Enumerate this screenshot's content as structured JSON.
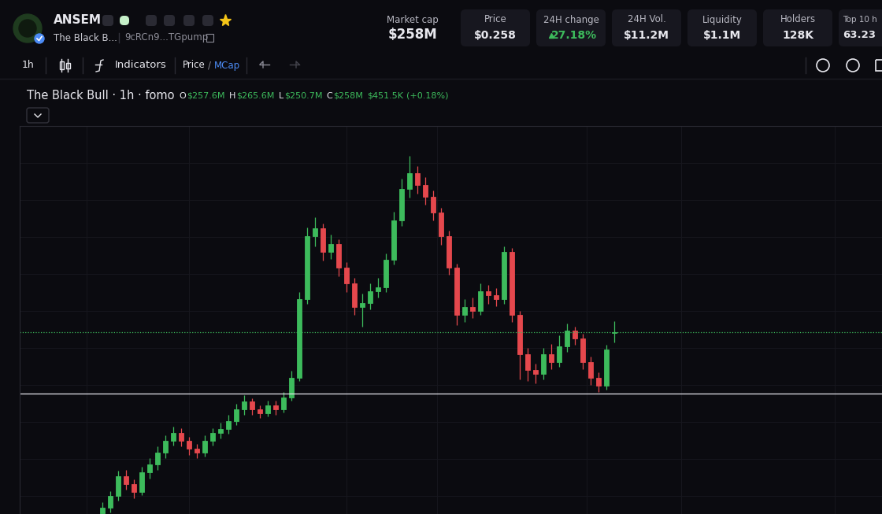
{
  "header": {
    "symbol": "ANSEM",
    "name": "The Black B...",
    "address": "9cRCn9...TGpump"
  },
  "stats": [
    {
      "label": "Market cap",
      "value": "$258M"
    },
    {
      "label": "Price",
      "value": "$0.258"
    },
    {
      "label": "24H change",
      "value": "27.18%"
    },
    {
      "label": "24H Vol.",
      "value": "$11.2M"
    },
    {
      "label": "Liquidity",
      "value": "$1.1M"
    },
    {
      "label": "Holders",
      "value": "128K"
    },
    {
      "label": "Top 10 h",
      "value": "63.23"
    }
  ],
  "toolbar": {
    "interval": "1h",
    "indicators": "Indicators",
    "price": "Price",
    "separator": "/",
    "mcap": "MCap"
  },
  "legend": {
    "title": "The Black Bull · 1h · fomo",
    "fields": [
      {
        "key": "O",
        "value": "$257.6M"
      },
      {
        "key": "H",
        "value": "$265.6M"
      },
      {
        "key": "L",
        "value": "$250.7M"
      },
      {
        "key": "C",
        "value": "$258M"
      }
    ],
    "volume": "$451.5K",
    "change": "(+0.18%)"
  },
  "chart_data": {
    "type": "candlestick",
    "xlim": [
      -10.5,
      99
    ],
    "ylim": [
      131,
      402
    ],
    "open": [
      130.0,
      135.4,
      143.6,
      157.4,
      151.9,
      146.4,
      160.1,
      165.6,
      173.9,
      182.1,
      187.6,
      182.1,
      176.6,
      173.9,
      182.1,
      187.6,
      190.4,
      195.9,
      204.1,
      209.6,
      204.1,
      201.4,
      206.9,
      204.1,
      212.4,
      226.1,
      281.1,
      325.1,
      330.6,
      314.1,
      319.6,
      303.1,
      292.1,
      275.6,
      278.4,
      286.6,
      289.4,
      308.6,
      336.1,
      358.1,
      369.1,
      360.9,
      352.6,
      341.6,
      325.1,
      303.1,
      270.1,
      275.6,
      272.9,
      286.6,
      283.9,
      281.1,
      314.1,
      270.1,
      242.6,
      231.6,
      228.9,
      242.6,
      237.1,
      248.1,
      259.1,
      253.6,
      237.1,
      226.1,
      220.6,
      257.6
    ],
    "high": [
      139.0,
      147.0,
      161.0,
      162.0,
      155.0,
      164.0,
      170.0,
      178.0,
      186.0,
      192.0,
      191.0,
      185.0,
      180.0,
      186.0,
      191.0,
      195.0,
      200.0,
      208.0,
      214.0,
      212.0,
      207.0,
      210.0,
      210.0,
      216.0,
      231.0,
      286.0,
      331.0,
      338.0,
      334.0,
      326.0,
      323.0,
      307.0,
      296.0,
      285.0,
      292.0,
      296.0,
      313.0,
      342.0,
      365.0,
      381.0,
      374.0,
      366.0,
      357.0,
      345.0,
      329.0,
      306.0,
      281.0,
      282.0,
      292.0,
      291.0,
      289.0,
      318.0,
      317.0,
      273.0,
      247.0,
      236.0,
      247.0,
      250.0,
      256.0,
      264.0,
      262.0,
      257.0,
      241.0,
      230.0,
      249.0,
      265.6
    ],
    "low": [
      127.5,
      132.0,
      140.5,
      148.0,
      142.0,
      144.0,
      156.0,
      162.0,
      170.0,
      179.0,
      178.0,
      172.0,
      170.0,
      171.0,
      179.0,
      184.0,
      187.0,
      193.0,
      200.0,
      200.0,
      198.0,
      199.0,
      200.0,
      202.0,
      210.0,
      224.0,
      278.0,
      318.0,
      308.0,
      309.0,
      297.0,
      286.0,
      270.0,
      262.0,
      274.0,
      282.0,
      286.0,
      305.0,
      332.0,
      352.0,
      355.0,
      347.0,
      336.0,
      319.0,
      298.0,
      263.0,
      265.0,
      268.0,
      270.0,
      278.0,
      276.0,
      278.0,
      265.0,
      225.0,
      224.0,
      222.0,
      225.0,
      232.0,
      234.0,
      244.0,
      249.0,
      232.0,
      221.0,
      216.0,
      218.0,
      250.7
    ],
    "close": [
      135.4,
      143.6,
      157.4,
      151.9,
      146.4,
      160.1,
      165.6,
      173.9,
      182.1,
      187.6,
      182.1,
      176.6,
      173.9,
      182.1,
      187.6,
      190.4,
      195.9,
      204.1,
      209.6,
      204.1,
      201.4,
      206.9,
      204.1,
      212.4,
      226.1,
      281.1,
      325.1,
      330.6,
      314.1,
      319.6,
      303.1,
      292.1,
      275.6,
      278.4,
      286.6,
      289.4,
      308.6,
      336.1,
      358.1,
      369.1,
      360.9,
      352.6,
      341.6,
      325.1,
      303.1,
      270.1,
      275.6,
      272.9,
      286.6,
      283.9,
      281.1,
      314.1,
      270.1,
      242.6,
      231.6,
      228.9,
      242.6,
      237.1,
      248.1,
      259.1,
      253.6,
      237.1,
      226.1,
      220.6,
      246.0,
      258.0
    ],
    "price_line": 258,
    "level_line": 215.1
  }
}
